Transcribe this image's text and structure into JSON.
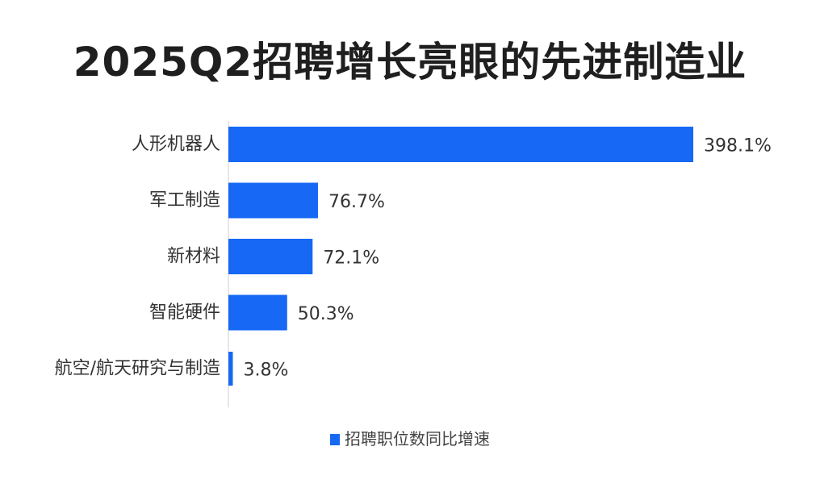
{
  "title": "2025Q2招聘增长亮眼的先进制造业",
  "legend_label": "招聘职位数同比增速",
  "colors": {
    "bar": "#1668f5",
    "axis": "#cfcfcf",
    "text": "#333333"
  },
  "chart_data": {
    "type": "bar",
    "orientation": "horizontal",
    "categories": [
      "人形机器人",
      "军工制造",
      "新材料",
      "智能硬件",
      "航空/航天研究与制造"
    ],
    "series": [
      {
        "name": "招聘职位数同比增速",
        "values": [
          398.1,
          76.7,
          72.1,
          50.3,
          3.8
        ],
        "labels": [
          "398.1%",
          "76.7%",
          "72.1%",
          "50.3%",
          "3.8%"
        ]
      }
    ],
    "xlim": [
      0,
      398.1
    ],
    "legend_position": "bottom",
    "grid": false
  }
}
